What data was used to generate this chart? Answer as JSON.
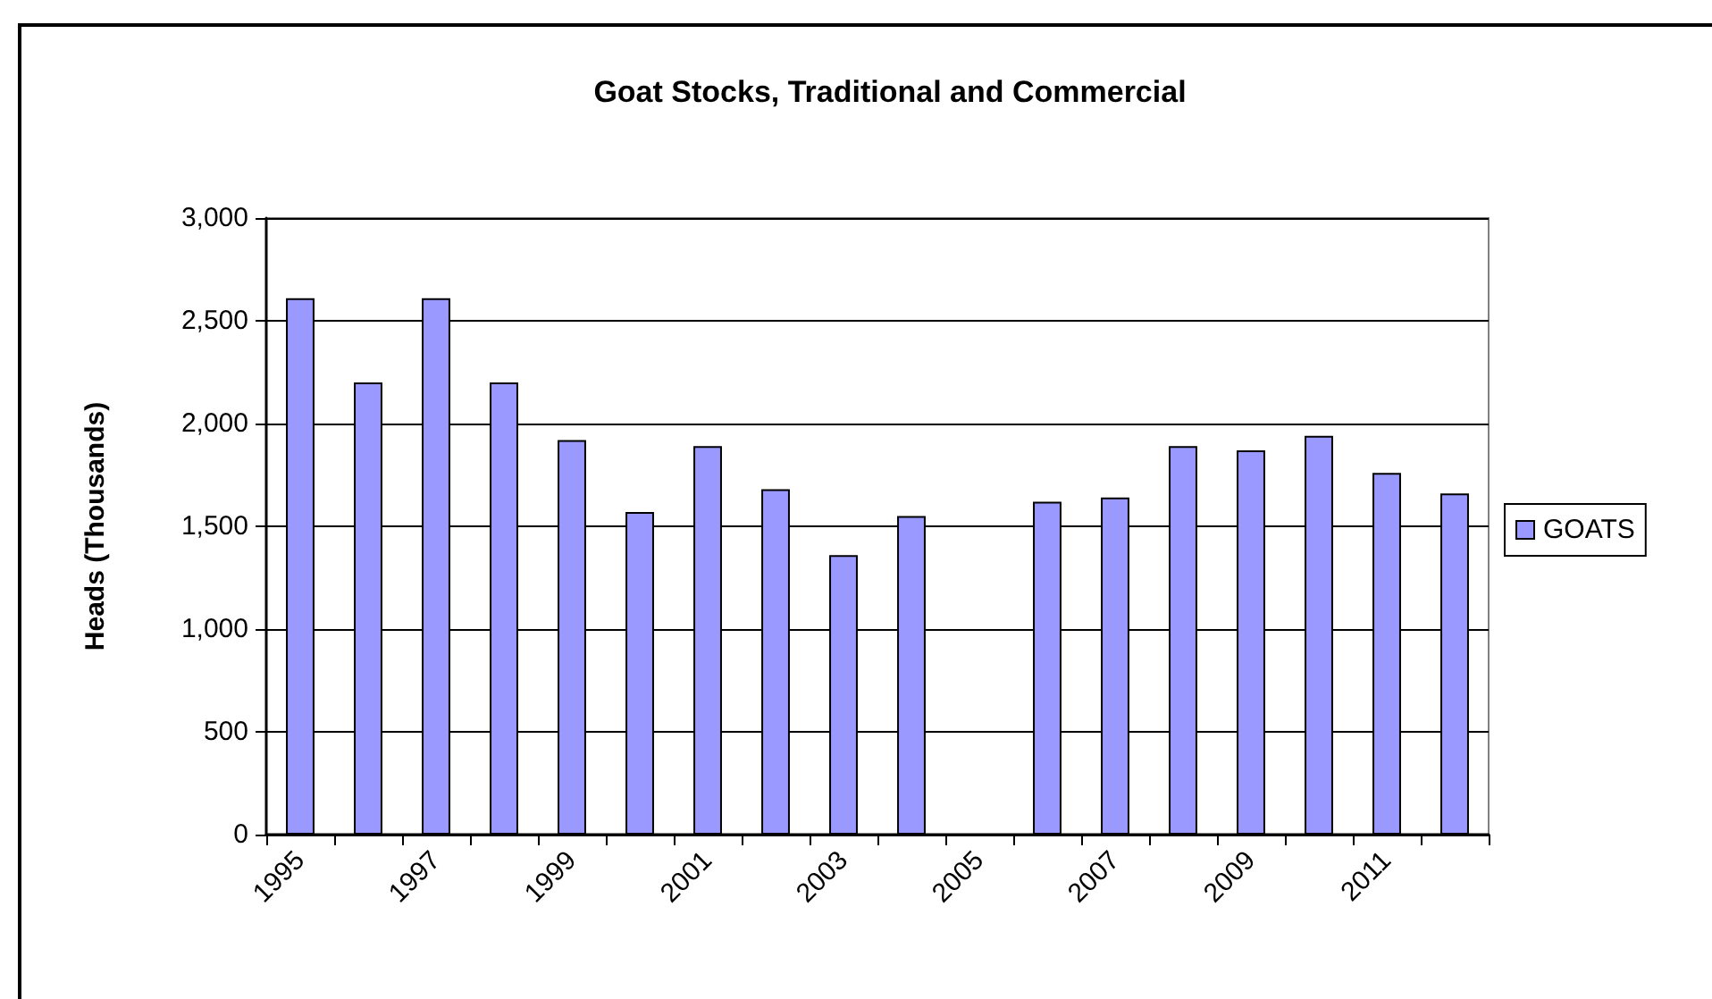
{
  "chart_data": {
    "type": "bar",
    "title": "Goat Stocks, Traditional and Commercial",
    "ylabel": "Heads (Thousands)",
    "categories": [
      "1995",
      null,
      "1997",
      null,
      "1999",
      null,
      "2001",
      null,
      "2003",
      null,
      "2005",
      null,
      "2007",
      null,
      "2009",
      null,
      "2011",
      null
    ],
    "series": [
      {
        "name": "GOATS",
        "color": "#9999ff",
        "values": [
          2610,
          2200,
          2610,
          2200,
          1920,
          1570,
          1890,
          1680,
          1360,
          1550,
          null,
          1620,
          1640,
          1890,
          1870,
          1940,
          1760,
          1660
        ]
      }
    ],
    "ylim": [
      0,
      3000
    ],
    "yticks": [
      {
        "value": 0,
        "label": "0"
      },
      {
        "value": 500,
        "label": "500"
      },
      {
        "value": 1000,
        "label": "1,000"
      },
      {
        "value": 1500,
        "label": "1,500"
      },
      {
        "value": 2000,
        "label": "2,000"
      },
      {
        "value": 2500,
        "label": "2,500"
      },
      {
        "value": 3000,
        "label": "3,000"
      }
    ],
    "grid": "y",
    "legend": "right"
  }
}
